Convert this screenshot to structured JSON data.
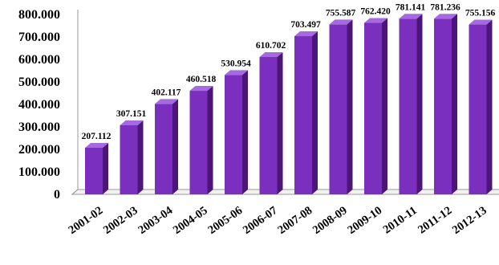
{
  "chart_data": {
    "type": "bar",
    "categories": [
      "2001-02",
      "2002-03",
      "2003-04",
      "2004-05",
      "2005-06",
      "2006-07",
      "2007-08",
      "2008-09",
      "2009-10",
      "2010-11",
      "2011-12",
      "2012-13"
    ],
    "values": [
      207.112,
      307.151,
      402.117,
      460.518,
      530.954,
      610.702,
      703.497,
      755.587,
      762.42,
      781.141,
      781.236,
      755.156
    ],
    "data_labels": [
      "207.112",
      "307.151",
      "402.117",
      "460.518",
      "530.954",
      "610.702",
      "703.497",
      "755.587",
      "762.420",
      "781.141",
      "781.236",
      "755.156"
    ],
    "yticks": [
      "0",
      "100.000",
      "200.000",
      "300.000",
      "400.000",
      "500.000",
      "600.000",
      "700.000",
      "800.000"
    ],
    "ylim": [
      0,
      800
    ],
    "title": "",
    "xlabel": "",
    "ylabel": "",
    "grid": false,
    "legend": "none",
    "style": "3d-column",
    "colors": {
      "bar_front": "#7b2fbf",
      "bar_top": "#a66ae0",
      "bar_side": "#4c1578",
      "floor": "#9a9a9a"
    }
  }
}
